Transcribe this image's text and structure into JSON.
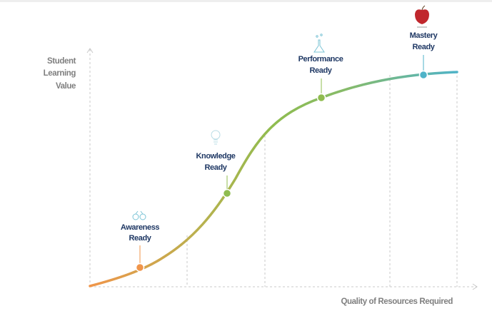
{
  "y_axis_label": [
    "Student",
    "Learning",
    "Value"
  ],
  "x_axis_label": "Quality of Resources Required",
  "stages": [
    {
      "lines": [
        "Awareness",
        "Ready"
      ]
    },
    {
      "lines": [
        "Knowledge",
        "Ready"
      ]
    },
    {
      "lines": [
        "Performance",
        "Ready"
      ]
    },
    {
      "lines": [
        "Mastery",
        "Ready"
      ]
    }
  ]
}
